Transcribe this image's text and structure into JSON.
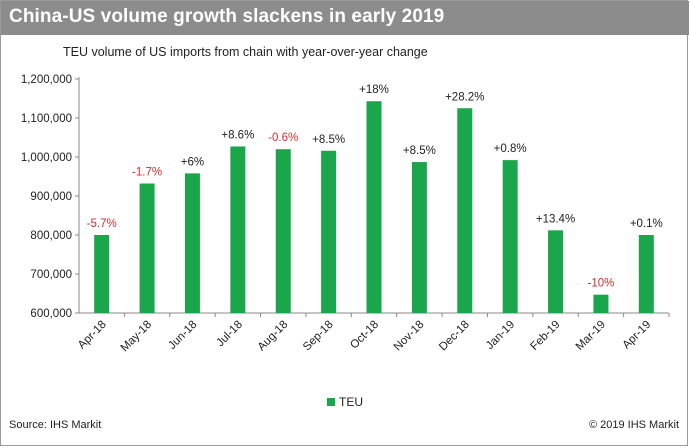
{
  "header": {
    "title": "China-US volume growth slackens in early 2019"
  },
  "footer": {
    "source": "Source: IHS Markit",
    "copyright": "© 2019 IHS Markit"
  },
  "colors": {
    "bar": "#1aa64b",
    "positive_label": "#222222",
    "negative_label": "#d32f2f",
    "header_bg": "#8c8c8c"
  },
  "chart_data": {
    "type": "bar",
    "title": "TEU volume of US imports from chain with year-over-year change",
    "xlabel": "",
    "ylabel": "",
    "categories": [
      "Apr-18",
      "May-18",
      "Jun-18",
      "Jul-18",
      "Aug-18",
      "Sep-18",
      "Oct-18",
      "Nov-18",
      "Dec-18",
      "Jan-19",
      "Feb-19",
      "Mar-19",
      "Apr-19"
    ],
    "series": [
      {
        "name": "TEU",
        "values": [
          800000,
          932000,
          958000,
          1027000,
          1020000,
          1016000,
          1143000,
          987000,
          1125000,
          992000,
          812000,
          647000,
          800000
        ]
      }
    ],
    "data_labels": [
      "-5.7%",
      "-1.7%",
      "+6%",
      "+8.6%",
      "-0.6%",
      "+8.5%",
      "+18%",
      "+8.5%",
      "+28.2%",
      "+0.8%",
      "+13.4%",
      "-10%",
      "+0.1%"
    ],
    "y_ticks": [
      "600,000",
      "700,000",
      "800,000",
      "900,000",
      "1,000,000",
      "1,100,000",
      "1,200,000"
    ],
    "ylim": [
      600000,
      1200000
    ],
    "grid": false,
    "legend": {
      "position": "bottom",
      "label": "TEU"
    }
  }
}
